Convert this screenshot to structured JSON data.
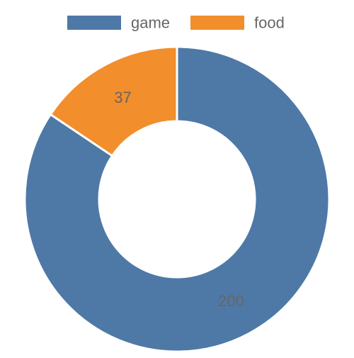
{
  "chart_data": {
    "type": "pie",
    "variant": "donut",
    "legend_position": "top",
    "slices": [
      {
        "label": "game",
        "value": 200,
        "color": "#4e79a7"
      },
      {
        "label": "food",
        "value": 37,
        "color": "#f28e2b"
      }
    ]
  }
}
